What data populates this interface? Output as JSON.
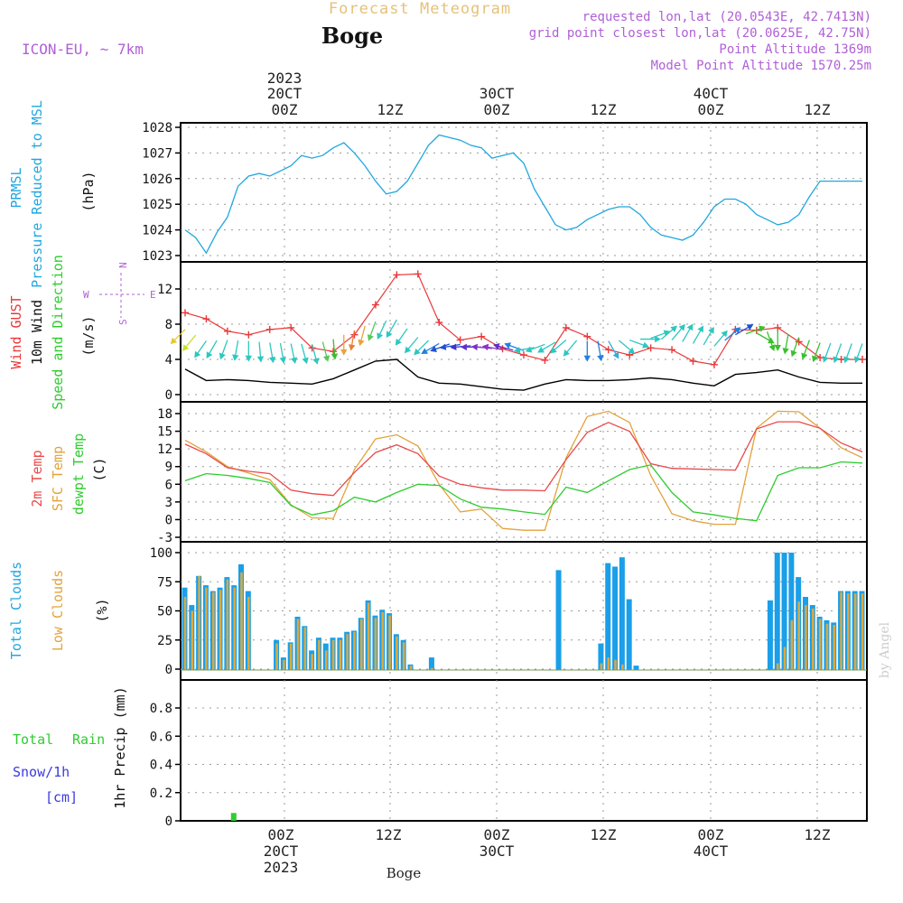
{
  "header": {
    "top_title": "Forecast Meteogram",
    "location": "Boge",
    "model": "ICON-EU, ~ 7km",
    "requested": "requested lon,lat (20.0543E, 42.7413N)",
    "grid_point": "grid point closest lon,lat (20.0625E, 42.75N)",
    "point_alt": "Point Altitude 1369m",
    "model_alt": "Model Point Altitude 1570.25m",
    "top_year": "2023",
    "top_d1": "20CT",
    "top_d2": "30CT",
    "top_d3": "40CT",
    "bottom_year": "2023",
    "bottom_d1": "20CT",
    "bottom_d2": "30CT",
    "bottom_d3": "40CT",
    "z00": "00Z",
    "z12": "12Z",
    "footer": "Boge",
    "watermark": "by Angel"
  },
  "panel_labels": {
    "prmsl": "PRMSL",
    "prmsl_desc": "Pressure Reduced to MSL",
    "hpa": "(hPa)",
    "wind_gust": "Wind GUST",
    "wind10": "10m Wind",
    "wind_sd": "Speed and Direction",
    "ms": "(m/s)",
    "compass_n": "N",
    "compass_s": "S",
    "compass_w": "W",
    "compass_e": "E",
    "t2m": "2m Temp",
    "sfc": "SFC Temp",
    "dewpt": "dewpt Temp",
    "degc": "(C)",
    "total_clouds": "Total Clouds",
    "low_clouds": "Low Clouds",
    "pct": "(%)",
    "total_rain_1": "Total",
    "total_rain_2": "Rain",
    "snow": "Snow/1h",
    "cm": "[cm]",
    "precip": "1hr Precip (mm)"
  },
  "colors": {
    "pressure": "#1fa7e0",
    "gust": "#e8393a",
    "wind_line": "#000000",
    "t2m": "#e84a4a",
    "sfc": "#e3a33c",
    "dewpt": "#2ecc2e",
    "total_cloud": "#1a9fe8",
    "low_cloud": "#d9a942",
    "rain": "#33cc33",
    "purple": "#b05fd6",
    "gold": "#e6c17a"
  },
  "chart_data": [
    {
      "type": "line",
      "name": "PRMSL",
      "ylabel": "(hPa)",
      "ylim": [
        1023,
        1028
      ],
      "yticks": [
        "1023",
        "1024",
        "1025",
        "1026",
        "1027",
        "1028"
      ],
      "x_hours": [
        0,
        3,
        6,
        9,
        12,
        15,
        18,
        21,
        24,
        27,
        30,
        33,
        36,
        39,
        42,
        45,
        48,
        51,
        54,
        57,
        60,
        63,
        66,
        69,
        72,
        75,
        78,
        81,
        84,
        87,
        90,
        93,
        96,
        99,
        102,
        105,
        108,
        111,
        114,
        117,
        120,
        123,
        126,
        129,
        132,
        135,
        138,
        141,
        144,
        147,
        150,
        153,
        156,
        159,
        162,
        165,
        168,
        171,
        174,
        177,
        180,
        183,
        186,
        189,
        192
      ],
      "values": [
        1024.0,
        1023.7,
        1023.1,
        1023.9,
        1024.5,
        1025.7,
        1026.1,
        1026.2,
        1026.1,
        1026.3,
        1026.5,
        1026.9,
        1026.8,
        1026.9,
        1027.2,
        1027.4,
        1027.0,
        1026.5,
        1025.9,
        1025.4,
        1025.5,
        1025.9,
        1026.6,
        1027.3,
        1027.7,
        1027.6,
        1027.5,
        1027.3,
        1027.2,
        1026.8,
        1026.9,
        1027.0,
        1026.6,
        1025.6,
        1024.9,
        1024.2,
        1024.0,
        1024.1,
        1024.4,
        1024.6,
        1024.8,
        1024.9,
        1024.9,
        1024.6,
        1024.1,
        1023.8,
        1023.7,
        1023.6,
        1023.8,
        1024.3,
        1024.9,
        1025.2,
        1025.2,
        1025.0,
        1024.6,
        1024.4,
        1024.2,
        1024.3,
        1024.6,
        1025.3,
        1025.9,
        1025.9,
        1025.9,
        1025.9,
        1025.9
      ]
    },
    {
      "type": "line",
      "name": "Wind",
      "ylabel": "(m/s)",
      "ylim": [
        0,
        14
      ],
      "yticks": [
        "0",
        "4",
        "8",
        "12"
      ],
      "x_hours": [
        0,
        6,
        12,
        18,
        24,
        30,
        36,
        42,
        48,
        54,
        60,
        66,
        72,
        78,
        84,
        90,
        96,
        102,
        108,
        114,
        120,
        126,
        132,
        138,
        144,
        150,
        156,
        162,
        168,
        174,
        180,
        186,
        192
      ],
      "gust": [
        9.3,
        8.6,
        7.2,
        6.8,
        7.4,
        7.6,
        5.3,
        4.9,
        6.8,
        10.2,
        13.6,
        13.7,
        8.2,
        6.2,
        6.6,
        5.2,
        4.5,
        3.9,
        7.6,
        6.6,
        5.1,
        4.5,
        5.3,
        5.1,
        3.8,
        3.4,
        7.4,
        7.3,
        7.6,
        6.0,
        4.2,
        4.0,
        4.0
      ],
      "wind10": [
        2.9,
        1.6,
        1.7,
        1.6,
        1.4,
        1.3,
        1.2,
        1.8,
        2.8,
        3.8,
        4.0,
        2.0,
        1.3,
        1.2,
        0.9,
        0.6,
        0.5,
        1.2,
        1.7,
        1.6,
        1.6,
        1.7,
        1.9,
        1.7,
        1.3,
        1.0,
        2.3,
        2.5,
        2.8,
        2.0,
        1.4,
        1.3,
        1.3
      ],
      "arrow_hours": [
        0,
        3,
        6,
        9,
        12,
        15,
        18,
        21,
        24,
        27,
        30,
        33,
        36,
        39,
        42,
        45,
        48,
        51,
        54,
        57,
        60,
        63,
        66,
        69,
        72,
        75,
        78,
        81,
        84,
        87,
        90,
        93,
        96,
        99,
        102,
        105,
        108,
        111,
        114,
        117,
        120,
        123,
        126,
        129,
        132,
        135,
        138,
        141,
        144,
        147,
        150,
        153,
        156,
        159,
        162,
        165,
        168,
        171,
        174,
        177,
        180,
        183,
        186,
        189,
        192
      ],
      "arrow_dirs": [
        225,
        220,
        215,
        210,
        200,
        190,
        180,
        175,
        170,
        170,
        168,
        165,
        165,
        165,
        175,
        180,
        190,
        195,
        200,
        205,
        210,
        215,
        220,
        225,
        240,
        250,
        260,
        265,
        270,
        275,
        280,
        285,
        290,
        260,
        250,
        240,
        230,
        220,
        180,
        170,
        150,
        130,
        110,
        90,
        70,
        50,
        40,
        30,
        30,
        30,
        40,
        50,
        60,
        70,
        120,
        160,
        180,
        190,
        200,
        200,
        200,
        200,
        200,
        200,
        200
      ],
      "arrow_colors": [
        "#e8c72d",
        "#c8e02a",
        "#2cc7c0",
        "#2cc7c0",
        "#2cc7c0",
        "#2cc7c0",
        "#2cc7c0",
        "#2cc7c0",
        "#2cc7c0",
        "#2cc7c0",
        "#2cc7c0",
        "#2cc7c0",
        "#2cc7c0",
        "#58c85a",
        "#3ac02e",
        "#e8a33c",
        "#f07a2e",
        "#e8a33c",
        "#58c85a",
        "#2cc7c0",
        "#2cc7c0",
        "#2cc7c0",
        "#2cc7c0",
        "#2cc7c0",
        "#2280e0",
        "#2250d0",
        "#2250d0",
        "#4030d0",
        "#6030c8",
        "#8030c8",
        "#9030c8",
        "#6030c8",
        "#2280e0",
        "#2cc7c0",
        "#2cc7c0",
        "#2cc7c0",
        "#2cc7c0",
        "#2cc7c0",
        "#2280e0",
        "#2280e0",
        "#2cb0e0",
        "#2cc7c0",
        "#2cc7c0",
        "#2cc7c0",
        "#2cc7c0",
        "#2cc7c0",
        "#2cc7c0",
        "#2cc7c0",
        "#2cc7c0",
        "#2cc7c0",
        "#2cc7c0",
        "#2280e0",
        "#2250d0",
        "#3ac02e",
        "#3ac02e",
        "#3ac02e",
        "#3ac02e",
        "#3ac02e",
        "#3ac02e",
        "#3ac02e",
        "#3ac02e",
        "#2cc7c0",
        "#2cc7c0",
        "#2cc7c0",
        "#2cc7c0"
      ]
    },
    {
      "type": "line",
      "name": "Temperature",
      "ylabel": "(C)",
      "ylim": [
        -3,
        19
      ],
      "yticks": [
        "-3",
        "0",
        "3",
        "6",
        "9",
        "12",
        "15",
        "18"
      ],
      "x_hours": [
        0,
        6,
        12,
        18,
        24,
        30,
        36,
        42,
        48,
        54,
        60,
        66,
        72,
        78,
        84,
        90,
        96,
        102,
        108,
        114,
        120,
        126,
        132,
        138,
        144,
        150,
        156,
        162,
        168,
        174,
        180,
        186,
        192
      ],
      "t2m": [
        12.8,
        11.2,
        8.8,
        8.2,
        7.8,
        5.0,
        4.4,
        4.1,
        8.0,
        11.4,
        12.7,
        11.2,
        7.4,
        6.0,
        5.4,
        5.0,
        5.0,
        4.9,
        10.2,
        14.8,
        16.5,
        15.0,
        9.5,
        8.7,
        8.6,
        8.5,
        8.4,
        15.4,
        16.6,
        16.6,
        15.5,
        13.0,
        11.5
      ],
      "sfc": [
        13.5,
        11.5,
        9.0,
        7.9,
        6.8,
        2.5,
        0.3,
        0.2,
        8.5,
        13.7,
        14.4,
        12.5,
        6.0,
        1.3,
        1.8,
        -1.5,
        -1.8,
        -1.8,
        10.5,
        17.5,
        18.4,
        16.5,
        7.5,
        1.0,
        -0.2,
        -0.8,
        -0.8,
        15.5,
        18.4,
        18.3,
        15.5,
        12.2,
        10.5
      ],
      "dewpt": [
        6.6,
        7.8,
        7.5,
        7.0,
        6.3,
        2.4,
        0.8,
        1.5,
        3.8,
        3.0,
        4.6,
        6.0,
        5.8,
        3.5,
        2.1,
        1.8,
        1.3,
        0.9,
        5.5,
        4.6,
        6.6,
        8.5,
        9.3,
        4.6,
        1.3,
        0.8,
        0.2,
        -0.2,
        7.5,
        8.8,
        8.8,
        9.8,
        9.6
      ]
    },
    {
      "type": "bar",
      "name": "Clouds",
      "ylabel": "(%)",
      "ylim": [
        0,
        100
      ],
      "yticks": [
        "0",
        "25",
        "50",
        "75",
        "100"
      ],
      "x_hours": [
        0,
        2,
        4,
        6,
        8,
        10,
        12,
        14,
        16,
        18,
        20,
        22,
        24,
        26,
        28,
        30,
        32,
        34,
        36,
        38,
        40,
        42,
        44,
        46,
        48,
        50,
        52,
        54,
        56,
        58,
        60,
        62,
        64,
        66,
        68,
        70,
        72,
        74,
        76,
        78,
        80,
        82,
        84,
        86,
        88,
        90,
        92,
        94,
        96,
        98,
        100,
        102,
        104,
        106,
        108,
        110,
        112,
        114,
        116,
        118,
        120,
        122,
        124,
        126,
        128,
        130,
        132,
        134,
        136,
        138,
        140,
        142,
        144,
        146,
        148,
        150,
        152,
        154,
        156,
        158,
        160,
        162,
        164,
        166,
        168,
        170,
        172,
        174,
        176,
        178,
        180,
        182,
        184,
        186,
        188,
        190,
        192
      ],
      "total": [
        70,
        55,
        80,
        72,
        67,
        70,
        79,
        72,
        90,
        67,
        0,
        0,
        0,
        25,
        10,
        23,
        45,
        37,
        16,
        27,
        22,
        27,
        27,
        32,
        33,
        44,
        59,
        46,
        51,
        48,
        30,
        25,
        4,
        0,
        0,
        10,
        0,
        0,
        0,
        0,
        0,
        0,
        0,
        0,
        0,
        0,
        0,
        0,
        0,
        0,
        0,
        0,
        0,
        85,
        0,
        0,
        0,
        0,
        0,
        22,
        91,
        88,
        96,
        60,
        3,
        0,
        0,
        0,
        0,
        0,
        0,
        0,
        0,
        0,
        0,
        0,
        0,
        0,
        0,
        0,
        0,
        0,
        0,
        59,
        100,
        100,
        100,
        79,
        62,
        55,
        45,
        42,
        40,
        67,
        67,
        67,
        67
      ],
      "low": [
        62,
        50,
        80,
        70,
        66,
        68,
        77,
        70,
        83,
        62,
        0,
        0,
        0,
        22,
        8,
        22,
        43,
        36,
        13,
        25,
        16,
        25,
        25,
        30,
        32,
        43,
        57,
        44,
        49,
        46,
        28,
        23,
        3,
        0,
        0,
        1,
        0,
        0,
        0,
        0,
        0,
        0,
        0,
        0,
        0,
        0,
        0,
        0,
        0,
        0,
        0,
        0,
        0,
        0,
        0,
        0,
        0,
        0,
        0,
        5,
        10,
        8,
        4,
        0,
        0,
        0,
        0,
        0,
        0,
        0,
        0,
        0,
        0,
        0,
        0,
        0,
        0,
        0,
        0,
        0,
        0,
        0,
        0,
        0,
        5,
        19,
        42,
        58,
        55,
        52,
        43,
        39,
        38,
        66,
        65,
        65,
        65
      ]
    },
    {
      "type": "bar",
      "name": "Precip",
      "ylabel": "1hr Precip (mm)",
      "ylim": [
        0,
        1
      ],
      "yticks": [
        "0",
        "0.2",
        "0.4",
        "0.6",
        "0.8"
      ],
      "x_hours": [
        10
      ],
      "rain": [
        0.03
      ]
    }
  ]
}
